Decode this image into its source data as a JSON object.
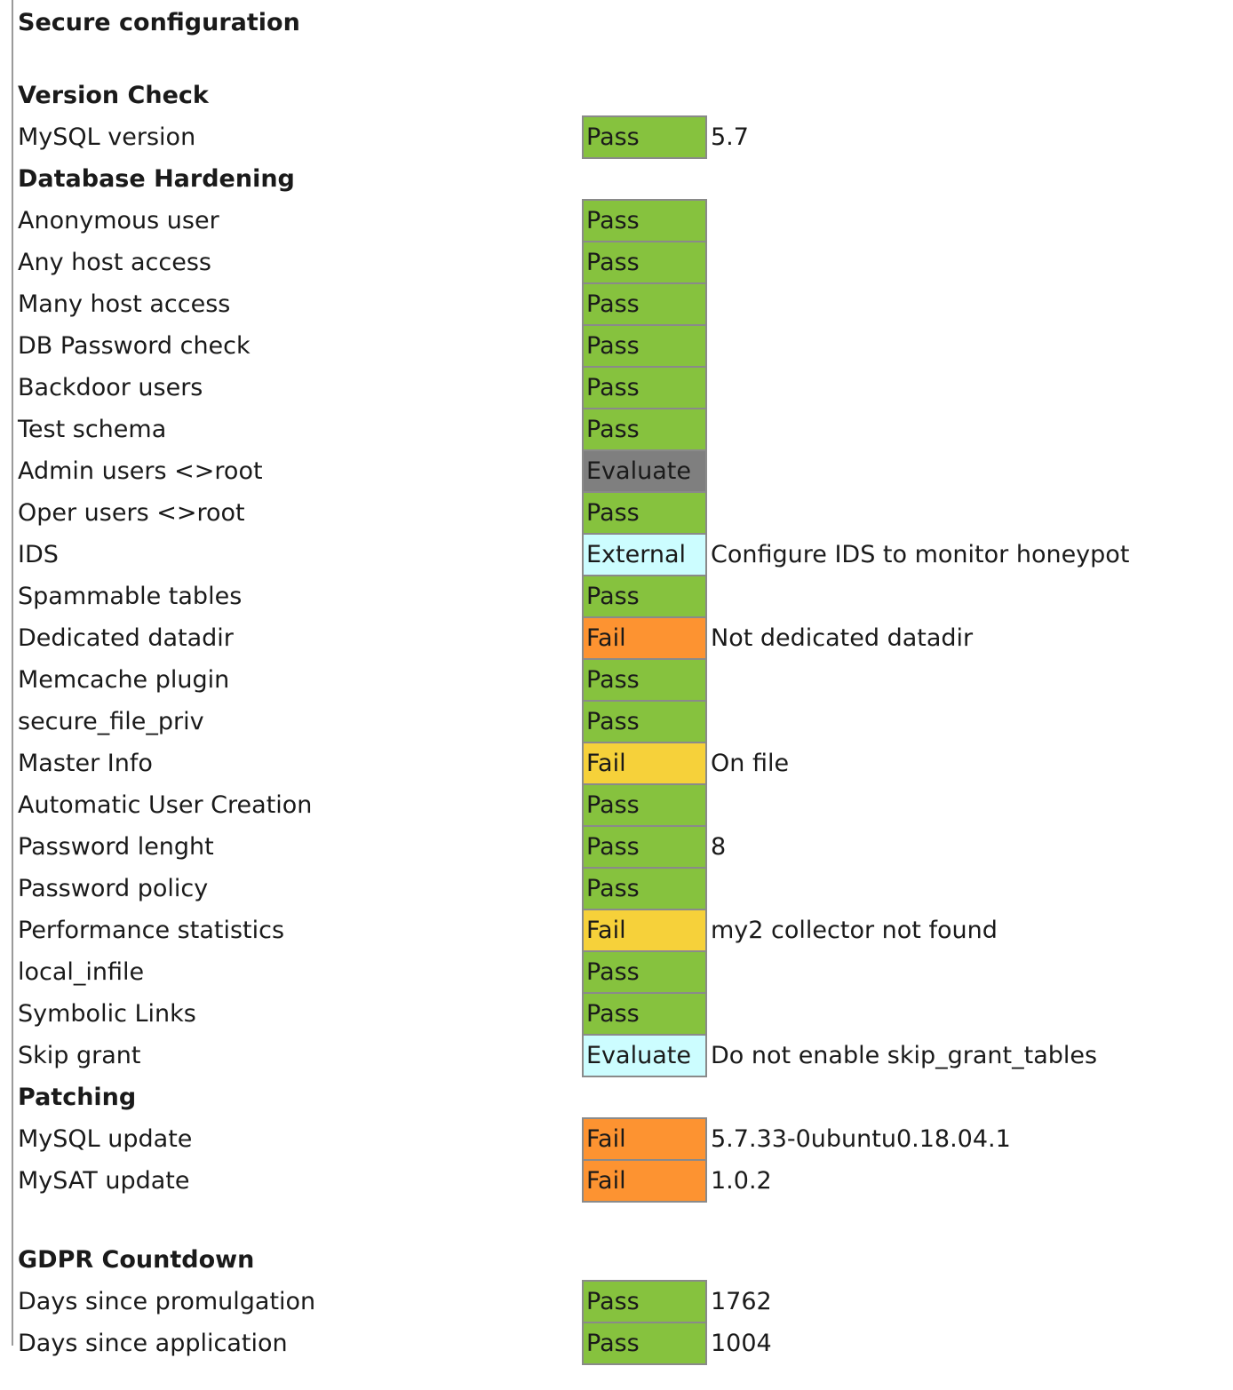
{
  "title": "Secure configuration",
  "colors": {
    "Pass": "#86c23e",
    "Evaluate-gray": "#7f7f7f",
    "External": "#ccfdff",
    "Fail-orange": "#fd9331",
    "Fail-yellow": "#f6d13a",
    "Evaluate-cyan": "#ccfdff"
  },
  "sections": [
    {
      "heading": "Version Check",
      "rows": [
        {
          "label": "MySQL version",
          "status": "Pass",
          "color": "#86c23e",
          "value": "5.7"
        }
      ]
    },
    {
      "heading": "Database Hardening",
      "rows": [
        {
          "label": "Anonymous user",
          "status": "Pass",
          "color": "#86c23e",
          "value": ""
        },
        {
          "label": "Any host access",
          "status": "Pass",
          "color": "#86c23e",
          "value": ""
        },
        {
          "label": "Many host access",
          "status": "Pass",
          "color": "#86c23e",
          "value": ""
        },
        {
          "label": "DB Password check",
          "status": "Pass",
          "color": "#86c23e",
          "value": ""
        },
        {
          "label": "Backdoor users",
          "status": "Pass",
          "color": "#86c23e",
          "value": ""
        },
        {
          "label": "Test schema",
          "status": "Pass",
          "color": "#86c23e",
          "value": ""
        },
        {
          "label": "Admin users <>root",
          "status": "Evaluate",
          "color": "#7f7f7f",
          "value": ""
        },
        {
          "label": "Oper users <>root",
          "status": "Pass",
          "color": "#86c23e",
          "value": ""
        },
        {
          "label": "IDS",
          "status": "External",
          "color": "#ccfdff",
          "value": "Configure IDS to monitor honeypot"
        },
        {
          "label": "Spammable tables",
          "status": "Pass",
          "color": "#86c23e",
          "value": ""
        },
        {
          "label": "Dedicated datadir",
          "status": "Fail",
          "color": "#fd9331",
          "value": "Not dedicated datadir"
        },
        {
          "label": "Memcache plugin",
          "status": "Pass",
          "color": "#86c23e",
          "value": ""
        },
        {
          "label": "secure_file_priv",
          "status": "Pass",
          "color": "#86c23e",
          "value": ""
        },
        {
          "label": "Master Info",
          "status": "Fail",
          "color": "#f6d13a",
          "value": "On file"
        },
        {
          "label": "Automatic User Creation",
          "status": "Pass",
          "color": "#86c23e",
          "value": ""
        },
        {
          "label": "Password lenght",
          "status": "Pass",
          "color": "#86c23e",
          "value": "8"
        },
        {
          "label": "Password policy",
          "status": "Pass",
          "color": "#86c23e",
          "value": ""
        },
        {
          "label": "Performance statistics",
          "status": "Fail",
          "color": "#f6d13a",
          "value": "my2 collector not found"
        },
        {
          "label": "local_infile",
          "status": "Pass",
          "color": "#86c23e",
          "value": ""
        },
        {
          "label": "Symbolic Links",
          "status": "Pass",
          "color": "#86c23e",
          "value": ""
        },
        {
          "label": "Skip grant",
          "status": "Evaluate",
          "color": "#ccfdff",
          "value": "Do not enable skip_grant_tables"
        }
      ]
    },
    {
      "heading": "Patching",
      "rows": [
        {
          "label": "MySQL update",
          "status": "Fail",
          "color": "#fd9331",
          "value": "5.7.33-0ubuntu0.18.04.1"
        },
        {
          "label": "MySAT update",
          "status": "Fail",
          "color": "#fd9331",
          "value": "1.0.2"
        }
      ]
    },
    {
      "heading": "GDPR Countdown",
      "rows": [
        {
          "label": "Days since promulgation",
          "status": "Pass",
          "color": "#86c23e",
          "value": "1762"
        },
        {
          "label": "Days since application",
          "status": "Pass",
          "color": "#86c23e",
          "value": "1004"
        }
      ]
    }
  ]
}
